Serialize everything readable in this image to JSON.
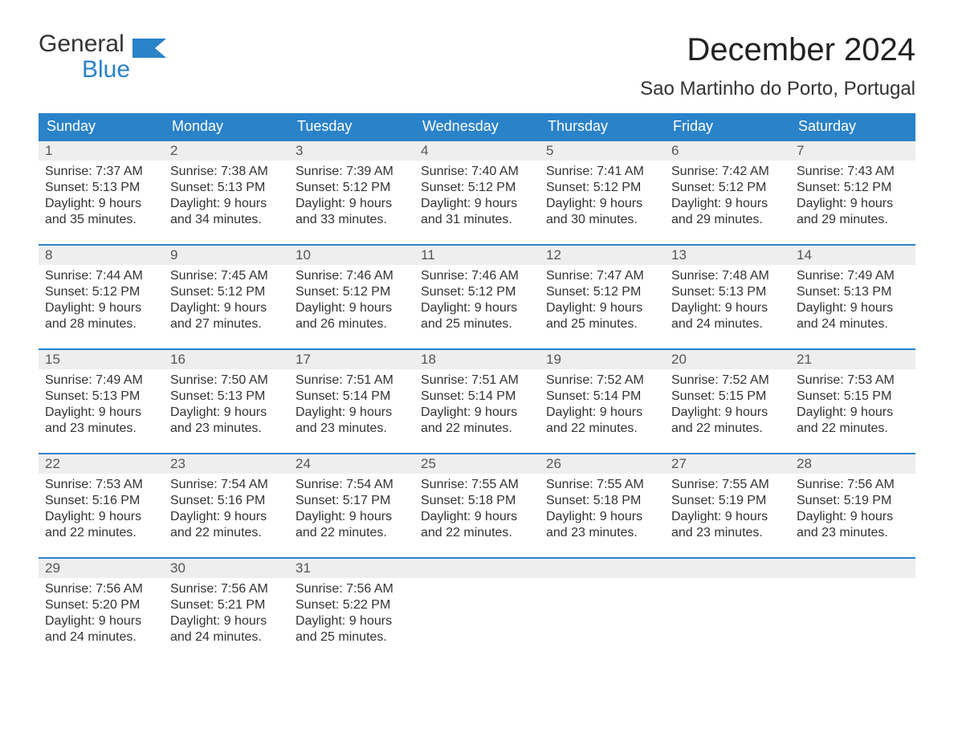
{
  "logo": {
    "word1": "General",
    "word2": "Blue"
  },
  "title": "December 2024",
  "location": "Sao Martinho do Porto, Portugal",
  "colors": {
    "brand_blue": "#2a82c9",
    "header_text": "#ffffff",
    "daynum_bg": "#eeeeee",
    "text": "#333333",
    "bg": "#ffffff"
  },
  "typography": {
    "title_fontsize": 40,
    "location_fontsize": 24,
    "dow_fontsize": 18,
    "daynum_fontsize": 17,
    "body_fontsize": 16
  },
  "days_of_week": [
    "Sunday",
    "Monday",
    "Tuesday",
    "Wednesday",
    "Thursday",
    "Friday",
    "Saturday"
  ],
  "weeks": [
    [
      {
        "date": "1",
        "sunrise": "7:37 AM",
        "sunset": "5:13 PM",
        "daylight": "9 hours and 35 minutes."
      },
      {
        "date": "2",
        "sunrise": "7:38 AM",
        "sunset": "5:13 PM",
        "daylight": "9 hours and 34 minutes."
      },
      {
        "date": "3",
        "sunrise": "7:39 AM",
        "sunset": "5:12 PM",
        "daylight": "9 hours and 33 minutes."
      },
      {
        "date": "4",
        "sunrise": "7:40 AM",
        "sunset": "5:12 PM",
        "daylight": "9 hours and 31 minutes."
      },
      {
        "date": "5",
        "sunrise": "7:41 AM",
        "sunset": "5:12 PM",
        "daylight": "9 hours and 30 minutes."
      },
      {
        "date": "6",
        "sunrise": "7:42 AM",
        "sunset": "5:12 PM",
        "daylight": "9 hours and 29 minutes."
      },
      {
        "date": "7",
        "sunrise": "7:43 AM",
        "sunset": "5:12 PM",
        "daylight": "9 hours and 29 minutes."
      }
    ],
    [
      {
        "date": "8",
        "sunrise": "7:44 AM",
        "sunset": "5:12 PM",
        "daylight": "9 hours and 28 minutes."
      },
      {
        "date": "9",
        "sunrise": "7:45 AM",
        "sunset": "5:12 PM",
        "daylight": "9 hours and 27 minutes."
      },
      {
        "date": "10",
        "sunrise": "7:46 AM",
        "sunset": "5:12 PM",
        "daylight": "9 hours and 26 minutes."
      },
      {
        "date": "11",
        "sunrise": "7:46 AM",
        "sunset": "5:12 PM",
        "daylight": "9 hours and 25 minutes."
      },
      {
        "date": "12",
        "sunrise": "7:47 AM",
        "sunset": "5:12 PM",
        "daylight": "9 hours and 25 minutes."
      },
      {
        "date": "13",
        "sunrise": "7:48 AM",
        "sunset": "5:13 PM",
        "daylight": "9 hours and 24 minutes."
      },
      {
        "date": "14",
        "sunrise": "7:49 AM",
        "sunset": "5:13 PM",
        "daylight": "9 hours and 24 minutes."
      }
    ],
    [
      {
        "date": "15",
        "sunrise": "7:49 AM",
        "sunset": "5:13 PM",
        "daylight": "9 hours and 23 minutes."
      },
      {
        "date": "16",
        "sunrise": "7:50 AM",
        "sunset": "5:13 PM",
        "daylight": "9 hours and 23 minutes."
      },
      {
        "date": "17",
        "sunrise": "7:51 AM",
        "sunset": "5:14 PM",
        "daylight": "9 hours and 23 minutes."
      },
      {
        "date": "18",
        "sunrise": "7:51 AM",
        "sunset": "5:14 PM",
        "daylight": "9 hours and 22 minutes."
      },
      {
        "date": "19",
        "sunrise": "7:52 AM",
        "sunset": "5:14 PM",
        "daylight": "9 hours and 22 minutes."
      },
      {
        "date": "20",
        "sunrise": "7:52 AM",
        "sunset": "5:15 PM",
        "daylight": "9 hours and 22 minutes."
      },
      {
        "date": "21",
        "sunrise": "7:53 AM",
        "sunset": "5:15 PM",
        "daylight": "9 hours and 22 minutes."
      }
    ],
    [
      {
        "date": "22",
        "sunrise": "7:53 AM",
        "sunset": "5:16 PM",
        "daylight": "9 hours and 22 minutes."
      },
      {
        "date": "23",
        "sunrise": "7:54 AM",
        "sunset": "5:16 PM",
        "daylight": "9 hours and 22 minutes."
      },
      {
        "date": "24",
        "sunrise": "7:54 AM",
        "sunset": "5:17 PM",
        "daylight": "9 hours and 22 minutes."
      },
      {
        "date": "25",
        "sunrise": "7:55 AM",
        "sunset": "5:18 PM",
        "daylight": "9 hours and 22 minutes."
      },
      {
        "date": "26",
        "sunrise": "7:55 AM",
        "sunset": "5:18 PM",
        "daylight": "9 hours and 23 minutes."
      },
      {
        "date": "27",
        "sunrise": "7:55 AM",
        "sunset": "5:19 PM",
        "daylight": "9 hours and 23 minutes."
      },
      {
        "date": "28",
        "sunrise": "7:56 AM",
        "sunset": "5:19 PM",
        "daylight": "9 hours and 23 minutes."
      }
    ],
    [
      {
        "date": "29",
        "sunrise": "7:56 AM",
        "sunset": "5:20 PM",
        "daylight": "9 hours and 24 minutes."
      },
      {
        "date": "30",
        "sunrise": "7:56 AM",
        "sunset": "5:21 PM",
        "daylight": "9 hours and 24 minutes."
      },
      {
        "date": "31",
        "sunrise": "7:56 AM",
        "sunset": "5:22 PM",
        "daylight": "9 hours and 25 minutes."
      },
      {
        "date": "",
        "sunrise": "",
        "sunset": "",
        "daylight": ""
      },
      {
        "date": "",
        "sunrise": "",
        "sunset": "",
        "daylight": ""
      },
      {
        "date": "",
        "sunrise": "",
        "sunset": "",
        "daylight": ""
      },
      {
        "date": "",
        "sunrise": "",
        "sunset": "",
        "daylight": ""
      }
    ]
  ],
  "labels": {
    "sunrise_prefix": "Sunrise: ",
    "sunset_prefix": "Sunset: ",
    "daylight_prefix": "Daylight: "
  }
}
